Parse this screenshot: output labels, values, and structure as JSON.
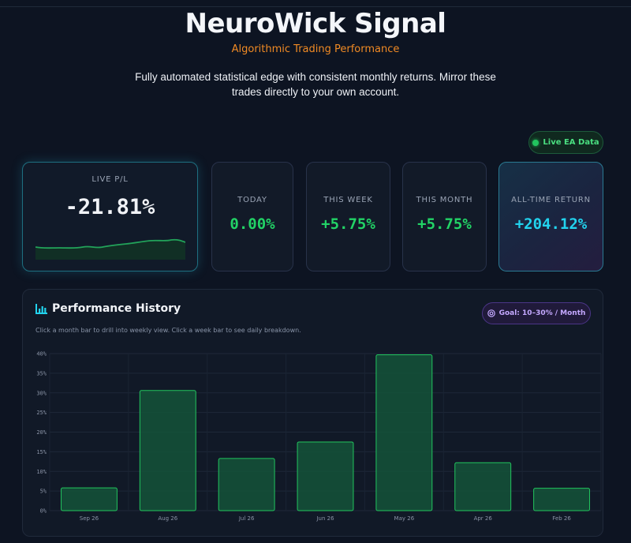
{
  "header": {
    "title": "NeuroWick Signal",
    "subtitle": "Algorithmic Trading Performance",
    "description": "Fully automated statistical edge with consistent monthly returns. Mirror these trades directly to your own account."
  },
  "live_badge": "Live EA Data",
  "stats": {
    "live_pl": {
      "label": "LIVE P/L",
      "value": "-21.81%"
    },
    "today": {
      "label": "TODAY",
      "value": "0.00%"
    },
    "this_week": {
      "label": "THIS WEEK",
      "value": "+5.75%"
    },
    "this_month": {
      "label": "THIS MONTH",
      "value": "+5.75%"
    },
    "all_time": {
      "label": "ALL-TIME RETURN",
      "value": "+204.12%"
    }
  },
  "colors": {
    "accent_green": "#22d366",
    "accent_cyan": "#22d3ee",
    "subtitle_orange": "#f08a24",
    "goal_purple": "#c4a8ff"
  },
  "performance": {
    "title": "Performance History",
    "hint": "Click a month bar to drill into weekly view. Click a week bar to see daily breakdown.",
    "goal_badge": "Goal: 10–30% / Month",
    "icons": {
      "title_icon": "bar-chart-icon",
      "goal_icon": "target-icon"
    }
  },
  "chart_data": {
    "type": "bar",
    "categories": [
      "Sep 26",
      "Aug 26",
      "Jul 26",
      "Jun 26",
      "May 26",
      "Apr 26",
      "Feb 26"
    ],
    "values": [
      5.8,
      30.6,
      13.3,
      17.5,
      39.7,
      12.2,
      5.7
    ],
    "ylim": [
      0,
      40
    ],
    "yticks": [
      "0%",
      "5%",
      "10%",
      "15%",
      "20%",
      "25%",
      "30%",
      "35%",
      "40%"
    ],
    "grid": true,
    "bar_color": "#22c55e"
  }
}
